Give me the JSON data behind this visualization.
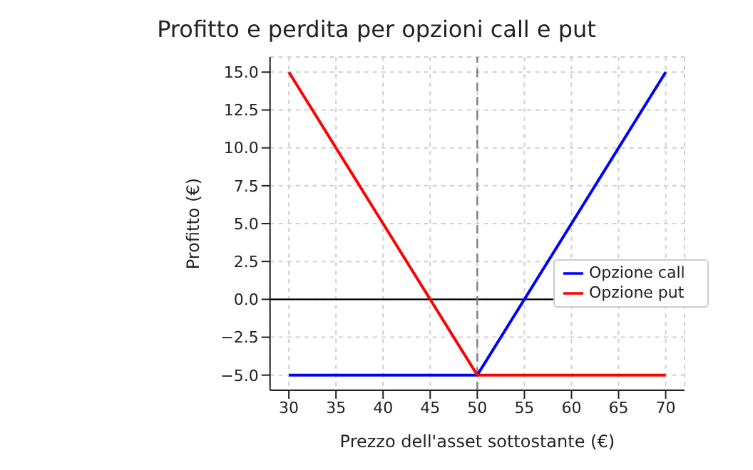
{
  "chart_data": {
    "type": "line",
    "title": "Profitto e perdita per opzioni call e put",
    "xlabel": "Prezzo dell'asset sottostante (€)",
    "ylabel": "Profitto (€)",
    "x": [
      30,
      50,
      70
    ],
    "series": [
      {
        "name": "Opzione call",
        "color": "#0000ff",
        "values": [
          -5,
          -5,
          15
        ]
      },
      {
        "name": "Opzione put",
        "color": "#ff0000",
        "values": [
          15,
          -5,
          -5
        ]
      }
    ],
    "xlim": [
      28,
      72
    ],
    "xticks": [
      30,
      35,
      40,
      45,
      50,
      55,
      60,
      65,
      70
    ],
    "ylim": [
      -6,
      16
    ],
    "yticks": [
      {
        "value": -5,
        "label": "−5.0"
      },
      {
        "value": -2.5,
        "label": "−2.5"
      },
      {
        "value": 0,
        "label": "0.0"
      },
      {
        "value": 2.5,
        "label": "2.5"
      },
      {
        "value": 5,
        "label": "5.0"
      },
      {
        "value": 7.5,
        "label": "7.5"
      },
      {
        "value": 10,
        "label": "10.0"
      },
      {
        "value": 12.5,
        "label": "12.5"
      },
      {
        "value": 15,
        "label": "15.0"
      }
    ],
    "ref_lines": [
      {
        "axis": "y",
        "value": 0,
        "color": "#000000",
        "line_style": "solid"
      },
      {
        "axis": "x",
        "value": 50,
        "color": "#808080",
        "line_style": "dashed"
      }
    ],
    "grid": true,
    "legend": "right",
    "marker": "none",
    "line_style": "solid"
  }
}
